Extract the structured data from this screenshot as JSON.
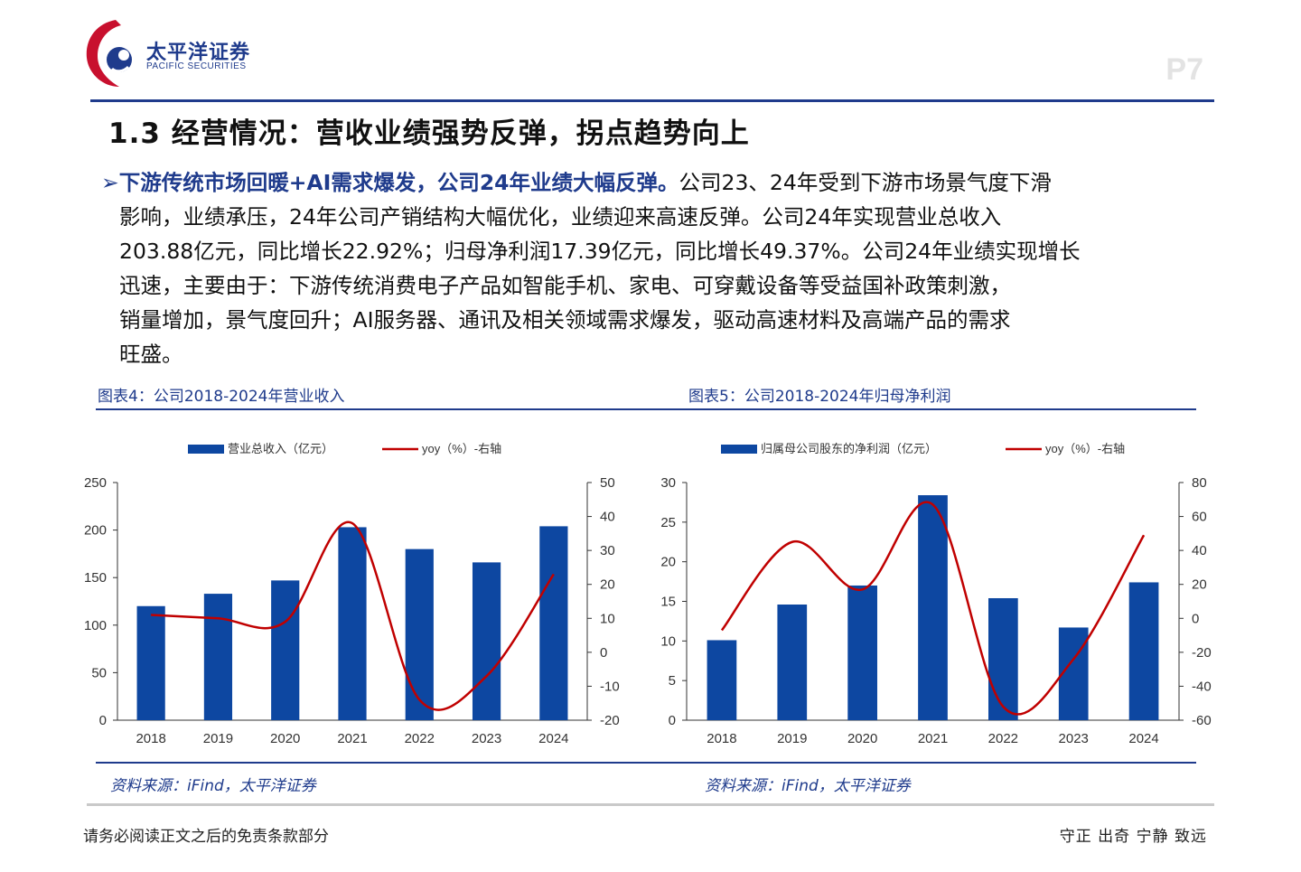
{
  "brand": {
    "name_cn": "太平洋证券",
    "name_en": "PACIFIC SECURITIES",
    "primary_color": "#1f3b8c",
    "accent_color": "#c8102e"
  },
  "page_number": "P7",
  "section_title": "1.3 经营情况：营收业绩强势反弹，拐点趋势向上",
  "paragraph": {
    "bullet": "➢",
    "lead": "下游传统市场回暖+AI需求爆发，公司24年业绩大幅反弹。",
    "lines": [
      "公司23、24年受到下游市场景气度下滑",
      "影响，业绩承压，24年公司产销结构大幅优化，业绩迎来高速反弹。公司24年实现营业总收入",
      "203.88亿元，同比增长22.92%；归母净利润17.39亿元，同比增长49.37%。公司24年业绩实现增长",
      "迅速，主要由于：下游传统消费电子产品如智能手机、家电、可穿戴设备等受益国补政策刺激，",
      "销量增加，景气度回升；AI服务器、通讯及相关领域需求爆发，驱动高速材料及高端产品的需求",
      "旺盛。"
    ]
  },
  "figures": [
    {
      "title": "图表4：公司2018-2024年营业收入",
      "source": "资料来源：iFind，太平洋证券"
    },
    {
      "title": "图表5：公司2018-2024年归母净利润",
      "source": "资料来源：iFind，太平洋证券"
    }
  ],
  "chart_data": [
    {
      "type": "bar",
      "categories": [
        "2018",
        "2019",
        "2020",
        "2021",
        "2022",
        "2023",
        "2024"
      ],
      "series": [
        {
          "name": "营业总收入（亿元）",
          "type": "bar",
          "axis": "left",
          "color": "#0d47a1",
          "values": [
            120,
            133,
            147,
            203,
            180,
            166,
            204
          ]
        },
        {
          "name": "yoy（%）-右轴",
          "type": "line",
          "axis": "right",
          "color": "#c00000",
          "values": [
            11,
            10,
            9,
            38,
            -14,
            -7,
            23
          ]
        }
      ],
      "ylim_left": [
        0,
        250
      ],
      "yticks_left": [
        "0",
        "50",
        "100",
        "150",
        "200",
        "250"
      ],
      "ylim_right": [
        -20,
        50
      ],
      "yticks_right": [
        "-20",
        "-10",
        "0",
        "10",
        "20",
        "30",
        "40",
        "50"
      ],
      "legend": "top-center",
      "grid": false
    },
    {
      "type": "bar",
      "categories": [
        "2018",
        "2019",
        "2020",
        "2021",
        "2022",
        "2023",
        "2024"
      ],
      "series": [
        {
          "name": "归属母公司股东的净利润（亿元）",
          "type": "bar",
          "axis": "left",
          "color": "#0d47a1",
          "values": [
            10.1,
            14.6,
            17.0,
            28.4,
            15.4,
            11.7,
            17.4
          ]
        },
        {
          "name": "yoy（%）-右轴",
          "type": "line",
          "axis": "right",
          "color": "#c00000",
          "values": [
            -7,
            45,
            17,
            67,
            -52,
            -24,
            49
          ]
        }
      ],
      "ylim_left": [
        0,
        30
      ],
      "yticks_left": [
        "0",
        "5",
        "10",
        "15",
        "20",
        "25",
        "30"
      ],
      "ylim_right": [
        -60,
        80
      ],
      "yticks_right": [
        "-60",
        "-40",
        "-20",
        "0",
        "20",
        "40",
        "60",
        "80"
      ],
      "legend": "top-center",
      "grid": false
    }
  ],
  "footer": {
    "left": "请务必阅读正文之后的免责条款部分",
    "right": "守正 出奇 宁静 致远"
  }
}
